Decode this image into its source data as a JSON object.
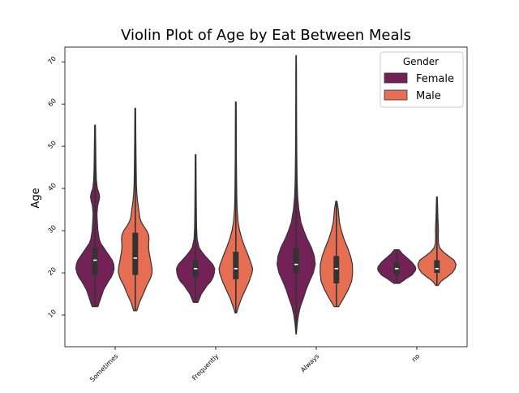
{
  "chart_data": {
    "type": "violin",
    "title": "Violin Plot of Age by Eat Between Meals",
    "xlabel": "",
    "ylabel": "Age",
    "categories": [
      "Sometimes",
      "Frequently",
      "Always",
      "no"
    ],
    "y_ticks": [
      10,
      20,
      30,
      40,
      50,
      60,
      70
    ],
    "ylim": [
      2.5,
      73.5
    ],
    "legend": {
      "title": "Gender",
      "position": "top-right",
      "entries": [
        {
          "label": "Female",
          "color": "#722257"
        },
        {
          "label": "Male",
          "color": "#E56E53"
        }
      ]
    },
    "series": [
      {
        "name": "Female",
        "color": "#722257",
        "groups": [
          {
            "category": "Sometimes",
            "min": 12,
            "q1": 19.5,
            "median": 23,
            "q3": 26,
            "max": 55,
            "density": [
              [
                12,
                0.15
              ],
              [
                14,
                0.3
              ],
              [
                16,
                0.45
              ],
              [
                18,
                0.7
              ],
              [
                19,
                0.85
              ],
              [
                20,
                0.95
              ],
              [
                21,
                1.0
              ],
              [
                22,
                0.98
              ],
              [
                23,
                0.9
              ],
              [
                24,
                0.75
              ],
              [
                25,
                0.6
              ],
              [
                26,
                0.45
              ],
              [
                27,
                0.3
              ],
              [
                28,
                0.22
              ],
              [
                30,
                0.15
              ],
              [
                32,
                0.12
              ],
              [
                34,
                0.1
              ],
              [
                36,
                0.14
              ],
              [
                37,
                0.2
              ],
              [
                38,
                0.24
              ],
              [
                39,
                0.2
              ],
              [
                40,
                0.12
              ],
              [
                42,
                0.07
              ],
              [
                45,
                0.05
              ],
              [
                48,
                0.04
              ],
              [
                52,
                0.03
              ],
              [
                55,
                0.02
              ]
            ]
          },
          {
            "category": "Frequently",
            "min": 13,
            "q1": 19,
            "median": 21,
            "q3": 23,
            "max": 48,
            "density": [
              [
                13,
                0.12
              ],
              [
                15,
                0.3
              ],
              [
                17,
                0.6
              ],
              [
                18,
                0.8
              ],
              [
                19,
                0.92
              ],
              [
                20,
                0.98
              ],
              [
                21,
                1.0
              ],
              [
                22,
                0.9
              ],
              [
                23,
                0.7
              ],
              [
                24,
                0.5
              ],
              [
                25,
                0.32
              ],
              [
                26,
                0.18
              ],
              [
                28,
                0.08
              ],
              [
                31,
                0.05
              ],
              [
                35,
                0.04
              ],
              [
                40,
                0.03
              ],
              [
                44,
                0.025
              ],
              [
                48,
                0.02
              ]
            ]
          },
          {
            "category": "Always",
            "min": 5.5,
            "q1": 20,
            "median": 22,
            "q3": 26,
            "max": 71.5,
            "density": [
              [
                5.5,
                0.01
              ],
              [
                8,
                0.06
              ],
              [
                10,
                0.12
              ],
              [
                12,
                0.22
              ],
              [
                14,
                0.38
              ],
              [
                16,
                0.52
              ],
              [
                18,
                0.7
              ],
              [
                20,
                0.9
              ],
              [
                22,
                1.0
              ],
              [
                24,
                0.95
              ],
              [
                26,
                0.8
              ],
              [
                28,
                0.58
              ],
              [
                30,
                0.4
              ],
              [
                32,
                0.25
              ],
              [
                35,
                0.14
              ],
              [
                38,
                0.08
              ],
              [
                42,
                0.05
              ],
              [
                48,
                0.035
              ],
              [
                55,
                0.025
              ],
              [
                62,
                0.02
              ],
              [
                68,
                0.018
              ],
              [
                71.5,
                0.01
              ]
            ]
          },
          {
            "category": "no",
            "min": 17.5,
            "q1": 19.5,
            "median": 21,
            "q3": 22.5,
            "max": 25.5,
            "density": [
              [
                17.5,
                0.15
              ],
              [
                18.5,
                0.45
              ],
              [
                19.5,
                0.8
              ],
              [
                20.5,
                0.97
              ],
              [
                21,
                1.0
              ],
              [
                21.5,
                0.97
              ],
              [
                22.5,
                0.8
              ],
              [
                23.5,
                0.55
              ],
              [
                24.5,
                0.3
              ],
              [
                25.5,
                0.12
              ]
            ]
          }
        ]
      },
      {
        "name": "Male",
        "color": "#E56E53",
        "groups": [
          {
            "category": "Sometimes",
            "min": 11,
            "q1": 19.5,
            "median": 23.5,
            "q3": 29.5,
            "max": 59,
            "density": [
              [
                11,
                0.08
              ],
              [
                13,
                0.22
              ],
              [
                15,
                0.42
              ],
              [
                17,
                0.6
              ],
              [
                18,
                0.72
              ],
              [
                19,
                0.82
              ],
              [
                20,
                0.88
              ],
              [
                21,
                0.88
              ],
              [
                22,
                0.84
              ],
              [
                23,
                0.8
              ],
              [
                24,
                0.76
              ],
              [
                25,
                0.72
              ],
              [
                26,
                0.7
              ],
              [
                27,
                0.7
              ],
              [
                28,
                0.72
              ],
              [
                29,
                0.7
              ],
              [
                30,
                0.6
              ],
              [
                31,
                0.45
              ],
              [
                32,
                0.32
              ],
              [
                33,
                0.24
              ],
              [
                35,
                0.18
              ],
              [
                37,
                0.12
              ],
              [
                39,
                0.08
              ],
              [
                41,
                0.06
              ],
              [
                44,
                0.05
              ],
              [
                48,
                0.04
              ],
              [
                52,
                0.03
              ],
              [
                56,
                0.025
              ],
              [
                59,
                0.02
              ]
            ]
          },
          {
            "category": "Frequently",
            "min": 10.5,
            "q1": 18.5,
            "median": 21,
            "q3": 25,
            "max": 60.5,
            "density": [
              [
                10.5,
                0.04
              ],
              [
                12,
                0.14
              ],
              [
                14,
                0.3
              ],
              [
                16,
                0.5
              ],
              [
                18,
                0.7
              ],
              [
                20,
                0.85
              ],
              [
                21,
                0.88
              ],
              [
                22,
                0.82
              ],
              [
                24,
                0.66
              ],
              [
                26,
                0.48
              ],
              [
                28,
                0.32
              ],
              [
                30,
                0.2
              ],
              [
                32,
                0.12
              ],
              [
                35,
                0.07
              ],
              [
                38,
                0.05
              ],
              [
                42,
                0.04
              ],
              [
                48,
                0.03
              ],
              [
                55,
                0.025
              ],
              [
                60.5,
                0.02
              ]
            ]
          },
          {
            "category": "Always",
            "min": 12,
            "q1": 17.5,
            "median": 21,
            "q3": 24,
            "max": 37,
            "density": [
              [
                12,
                0.12
              ],
              [
                14,
                0.38
              ],
              [
                16,
                0.62
              ],
              [
                18,
                0.8
              ],
              [
                20,
                0.85
              ],
              [
                22,
                0.84
              ],
              [
                24,
                0.74
              ],
              [
                26,
                0.58
              ],
              [
                28,
                0.4
              ],
              [
                30,
                0.26
              ],
              [
                32,
                0.16
              ],
              [
                34,
                0.12
              ],
              [
                35,
                0.1
              ],
              [
                37,
                0.03
              ]
            ]
          },
          {
            "category": "no",
            "min": 17,
            "q1": 20,
            "median": 21,
            "q3": 23,
            "max": 38,
            "density": [
              [
                17,
                0.06
              ],
              [
                18,
                0.22
              ],
              [
                19,
                0.52
              ],
              [
                20,
                0.8
              ],
              [
                21,
                0.95
              ],
              [
                22,
                1.0
              ],
              [
                23,
                0.9
              ],
              [
                24,
                0.6
              ],
              [
                25,
                0.32
              ],
              [
                26,
                0.14
              ],
              [
                27,
                0.08
              ],
              [
                29,
                0.07
              ],
              [
                30,
                0.08
              ],
              [
                31,
                0.07
              ],
              [
                33,
                0.05
              ],
              [
                35,
                0.04
              ],
              [
                36,
                0.035
              ],
              [
                38,
                0.02
              ]
            ]
          }
        ]
      }
    ]
  }
}
